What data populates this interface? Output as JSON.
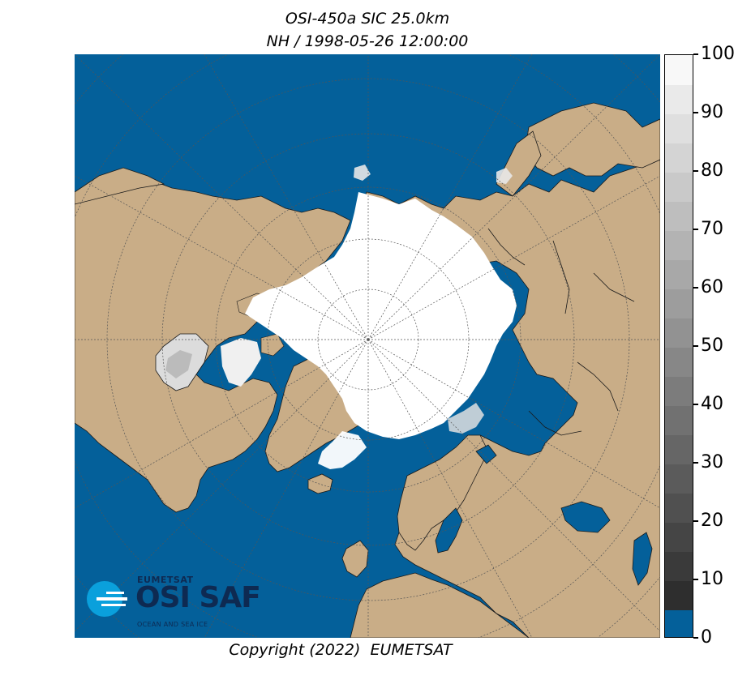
{
  "title": {
    "line1": "OSI-450a SIC 25.0km",
    "line2": "NH / 1998-05-26 12:00:00"
  },
  "copyright": "Copyright (2022)  EUMETSAT",
  "logo": {
    "organisation": "EUMETSAT",
    "product": "OSI SAF",
    "subtitle": "OCEAN AND SEA ICE"
  },
  "colors": {
    "ocean": "#04609a",
    "land": "#c9ad87",
    "ice": "#ffffff",
    "coast": "#1a1a1a",
    "graticule": "#555555",
    "logo_blue": "#0aa0dc",
    "logo_text": "#0e2a52"
  },
  "colorbar": {
    "min": 0,
    "max": 100,
    "step": 5,
    "tick_labels": [
      "0",
      "10",
      "20",
      "30",
      "40",
      "50",
      "60",
      "70",
      "80",
      "90",
      "100"
    ],
    "bins": [
      {
        "from": 0,
        "to": 5,
        "color": "#04609a"
      },
      {
        "from": 5,
        "to": 10,
        "color": "#2e2e2e"
      },
      {
        "from": 10,
        "to": 15,
        "color": "#3a3a3a"
      },
      {
        "from": 15,
        "to": 20,
        "color": "#454545"
      },
      {
        "from": 20,
        "to": 25,
        "color": "#505050"
      },
      {
        "from": 25,
        "to": 30,
        "color": "#5b5b5b"
      },
      {
        "from": 30,
        "to": 35,
        "color": "#666666"
      },
      {
        "from": 35,
        "to": 40,
        "color": "#717171"
      },
      {
        "from": 40,
        "to": 45,
        "color": "#7c7c7c"
      },
      {
        "from": 45,
        "to": 50,
        "color": "#878787"
      },
      {
        "from": 50,
        "to": 55,
        "color": "#929292"
      },
      {
        "from": 55,
        "to": 60,
        "color": "#9d9d9d"
      },
      {
        "from": 60,
        "to": 65,
        "color": "#a8a8a8"
      },
      {
        "from": 65,
        "to": 70,
        "color": "#b3b3b3"
      },
      {
        "from": 70,
        "to": 75,
        "color": "#bebebe"
      },
      {
        "from": 75,
        "to": 80,
        "color": "#c9c9c9"
      },
      {
        "from": 80,
        "to": 85,
        "color": "#d4d4d4"
      },
      {
        "from": 85,
        "to": 90,
        "color": "#dfdfdf"
      },
      {
        "from": 90,
        "to": 95,
        "color": "#eaeaea"
      },
      {
        "from": 95,
        "to": 100,
        "color": "#f8f8f8"
      }
    ]
  },
  "map": {
    "projection": "north-polar-stereographic",
    "hemisphere": "NH",
    "graticule": true,
    "legend_placement": "right"
  }
}
